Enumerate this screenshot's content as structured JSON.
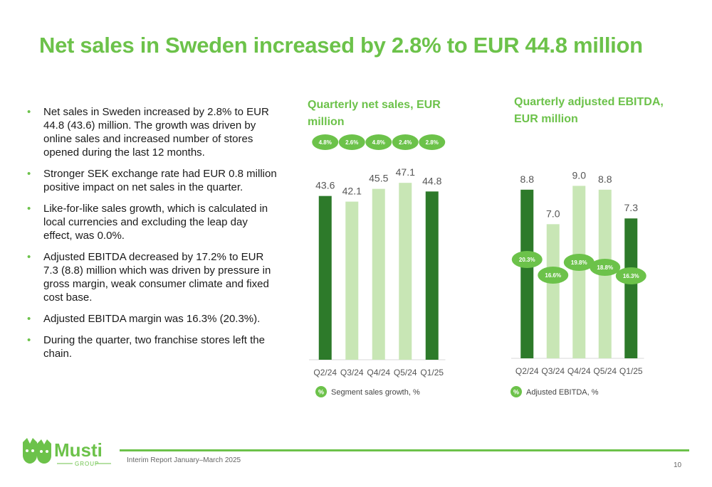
{
  "title": "Net sales in Sweden increased by 2.8% to EUR 44.8 million",
  "bullets": [
    "Net sales in Sweden increased by 2.8% to EUR 44.8 (43.6) million. The growth was driven by online sales and increased number of stores opened during the last 12 months.",
    "Stronger SEK exchange rate had EUR 0.8 million positive impact on net sales in the quarter.",
    "Like-for-like sales growth, which is calculated in local currencies and excluding the leap day effect, was 0.0%.",
    "Adjusted EBITDA decreased by 17.2% to EUR 7.3 (8.8) million which was driven by pressure in gross margin, weak consumer climate and fixed cost base.",
    "Adjusted EBITDA margin was 16.3% (20.3%).",
    "During the quarter, two franchise stores left the chain."
  ],
  "colors": {
    "accent": "#6cc24a",
    "dark_bar": "#2d7a2a",
    "light_bar": "#c8e6b5",
    "badge": "#6cc24a"
  },
  "chart_data": [
    {
      "type": "bar",
      "title": "Quarterly net sales, EUR million",
      "categories": [
        "Q2/24",
        "Q3/24",
        "Q4/24",
        "Q5/24",
        "Q1/25"
      ],
      "values": [
        43.6,
        42.1,
        45.5,
        47.1,
        44.8
      ],
      "value_labels": [
        "43.6",
        "42.1",
        "45.5",
        "47.1",
        "44.8"
      ],
      "bar_shades": [
        "dark",
        "light",
        "light",
        "light",
        "dark"
      ],
      "badges": [
        "4.8%",
        "2.6%",
        "4.8%",
        "2.4%",
        "2.8%"
      ],
      "legend_symbol": "%",
      "legend_label": "Segment sales growth, %",
      "ylim": [
        0,
        53
      ],
      "grid": false
    },
    {
      "type": "bar",
      "title": "Quarterly adjusted EBITDA, EUR million",
      "categories": [
        "Q2/24",
        "Q3/24",
        "Q4/24",
        "Q5/24",
        "Q1/25"
      ],
      "values": [
        8.8,
        7.0,
        9.0,
        8.8,
        7.3
      ],
      "value_labels": [
        "8.8",
        "7.0",
        "9.0",
        "8.8",
        "7.3"
      ],
      "bar_shades": [
        "dark",
        "light",
        "light",
        "light",
        "dark"
      ],
      "badges": [
        "20.3%",
        "16.6%",
        "19.8%",
        "18.8%",
        "16.3%"
      ],
      "legend_symbol": "%",
      "legend_label": "Adjusted EBITDA, %",
      "ylim": [
        0,
        10.5
      ],
      "grid": false
    }
  ],
  "footer": {
    "text": "Interim Report January–March 2025",
    "page": "10",
    "logo_word": "Musti",
    "logo_sub": "GROUP"
  }
}
